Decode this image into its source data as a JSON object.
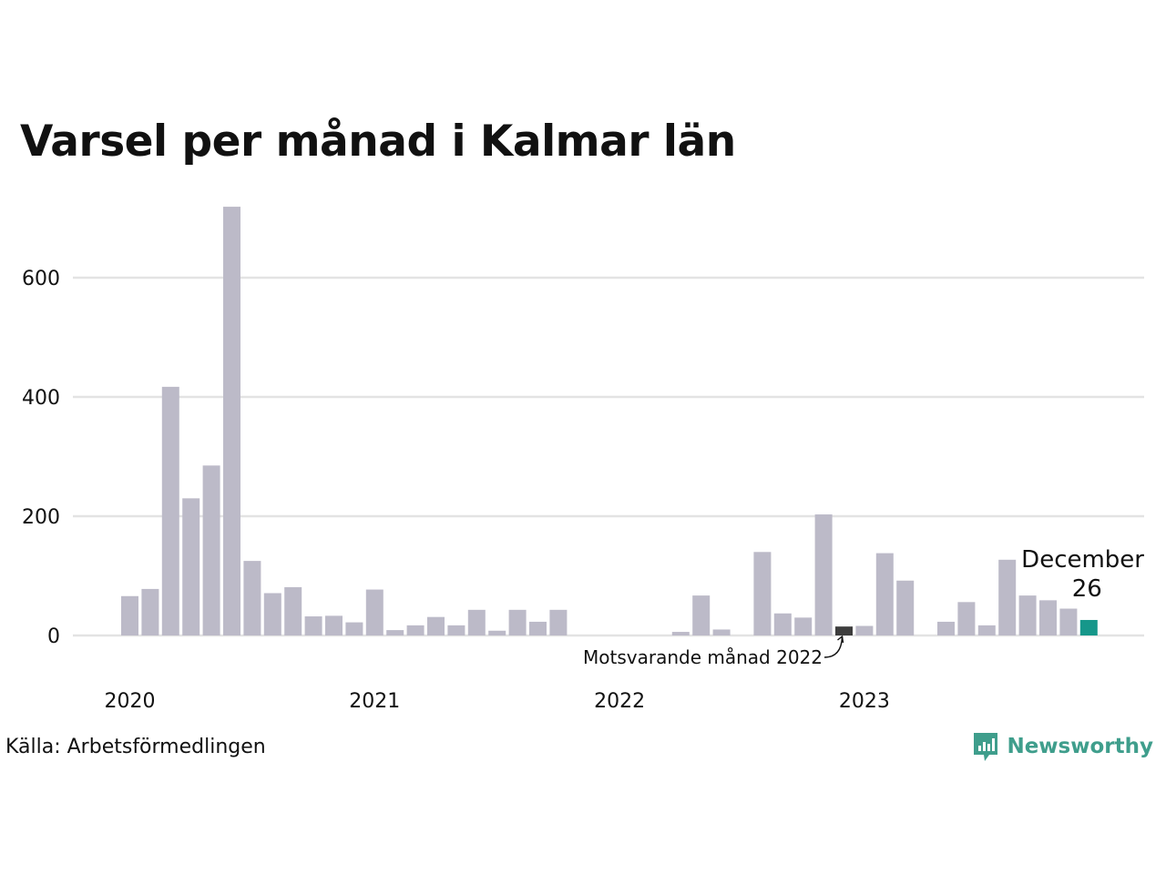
{
  "title": "Varsel per månad i Kalmar län",
  "source": "Källa: Arbetsförmedlingen",
  "brand": {
    "name": "Newsworthy",
    "icon": "newsworthy-logo-icon",
    "color": "#3f9e8c"
  },
  "colors": {
    "bar": "#bcbac8",
    "comparison": "#3d3d3d",
    "latest": "#16978a",
    "grid": "#e3e3e3"
  },
  "chart_data": {
    "type": "bar",
    "title": "Varsel per månad i Kalmar län",
    "xlabel": "",
    "ylabel": "",
    "ylim": [
      0,
      720
    ],
    "yticks": [
      0,
      200,
      400,
      600
    ],
    "year_labels": [
      "2020",
      "2021",
      "2022",
      "2023"
    ],
    "grid": true,
    "categories": [
      "2020-01",
      "2020-02",
      "2020-03",
      "2020-04",
      "2020-05",
      "2020-06",
      "2020-07",
      "2020-08",
      "2020-09",
      "2020-10",
      "2020-11",
      "2020-12",
      "2021-01",
      "2021-02",
      "2021-03",
      "2021-04",
      "2021-05",
      "2021-06",
      "2021-07",
      "2021-08",
      "2021-09",
      "2021-10",
      "2021-11",
      "2021-12",
      "2022-01",
      "2022-02",
      "2022-03",
      "2022-04",
      "2022-05",
      "2022-06",
      "2022-07",
      "2022-08",
      "2022-09",
      "2022-10",
      "2022-11",
      "2022-12",
      "2023-01",
      "2023-02",
      "2023-03",
      "2023-04",
      "2023-05",
      "2023-06",
      "2023-07",
      "2023-08",
      "2023-09",
      "2023-10",
      "2023-11",
      "2023-12"
    ],
    "values": [
      66,
      78,
      417,
      230,
      285,
      719,
      125,
      71,
      81,
      32,
      33,
      22,
      77,
      9,
      17,
      31,
      17,
      43,
      8,
      43,
      23,
      43,
      0,
      0,
      0,
      0,
      0,
      6,
      67,
      10,
      0,
      140,
      37,
      30,
      203,
      15,
      16,
      138,
      92,
      0,
      23,
      56,
      17,
      127,
      67,
      59,
      45,
      26
    ],
    "highlights": {
      "comparison_index": 35,
      "latest_index": 47
    },
    "annotations": {
      "latest_month": "December",
      "latest_value": "26",
      "comparison_label": "Motsvarande månad 2022"
    }
  }
}
